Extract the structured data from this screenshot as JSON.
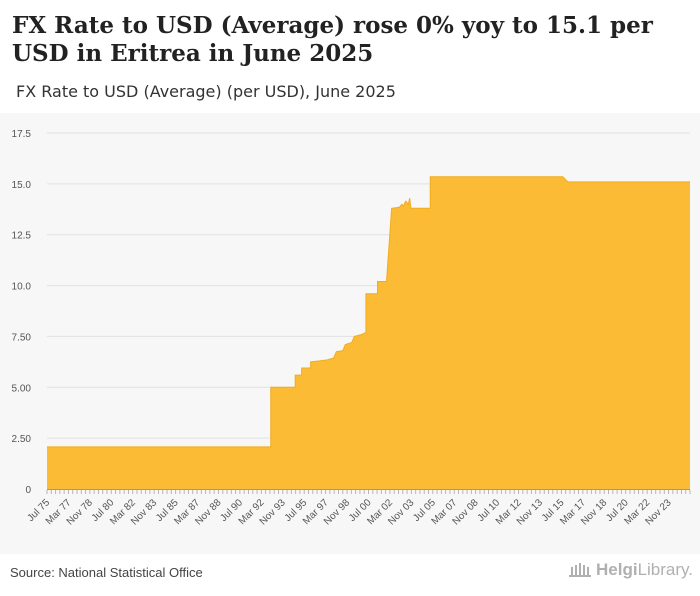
{
  "header": {
    "title": "FX Rate to USD (Average) rose 0% yoy to 15.1 per USD in Eritrea in June 2025",
    "subtitle": "FX Rate to USD (Average) (per USD), June 2025"
  },
  "footer": {
    "source": "Source: National Statistical Office",
    "logo_part1": "Helgi",
    "logo_part2": "Library."
  },
  "chart_data": {
    "type": "area",
    "title": "FX Rate to USD (Average) rose 0% yoy to 15.1 per USD in Eritrea in June 2025",
    "subtitle": "FX Rate to USD (Average) (per USD), June 2025",
    "xlabel": "",
    "ylabel": "",
    "ylim": [
      0,
      17.5
    ],
    "x_range": [
      1975.5,
      2025.5
    ],
    "grid": true,
    "series_color": "#fbbb35",
    "y_ticks": [
      {
        "value": 0,
        "label": "0"
      },
      {
        "value": 2.5,
        "label": "2.50"
      },
      {
        "value": 5,
        "label": "5.00"
      },
      {
        "value": 7.5,
        "label": "7.50"
      },
      {
        "value": 10,
        "label": "10.0"
      },
      {
        "value": 12.5,
        "label": "12.5"
      },
      {
        "value": 15,
        "label": "15.0"
      },
      {
        "value": 17.5,
        "label": "17.5"
      }
    ],
    "x_ticks": [
      {
        "t": 1975.5,
        "label": "Jul 75"
      },
      {
        "t": 1977.17,
        "label": "Mar 77"
      },
      {
        "t": 1978.83,
        "label": "Nov 78"
      },
      {
        "t": 1980.5,
        "label": "Jul 80"
      },
      {
        "t": 1982.17,
        "label": "Mar 82"
      },
      {
        "t": 1983.83,
        "label": "Nov 83"
      },
      {
        "t": 1985.5,
        "label": "Jul 85"
      },
      {
        "t": 1987.17,
        "label": "Mar 87"
      },
      {
        "t": 1988.83,
        "label": "Nov 88"
      },
      {
        "t": 1990.5,
        "label": "Jul 90"
      },
      {
        "t": 1992.17,
        "label": "Mar 92"
      },
      {
        "t": 1993.83,
        "label": "Nov 93"
      },
      {
        "t": 1995.5,
        "label": "Jul 95"
      },
      {
        "t": 1997.17,
        "label": "Mar 97"
      },
      {
        "t": 1998.83,
        "label": "Nov 98"
      },
      {
        "t": 2000.5,
        "label": "Jul 00"
      },
      {
        "t": 2002.17,
        "label": "Mar 02"
      },
      {
        "t": 2003.83,
        "label": "Nov 03"
      },
      {
        "t": 2005.5,
        "label": "Jul 05"
      },
      {
        "t": 2007.17,
        "label": "Mar 07"
      },
      {
        "t": 2008.83,
        "label": "Nov 08"
      },
      {
        "t": 2010.5,
        "label": "Jul 10"
      },
      {
        "t": 2012.17,
        "label": "Mar 12"
      },
      {
        "t": 2013.83,
        "label": "Nov 13"
      },
      {
        "t": 2015.5,
        "label": "Jul 15"
      },
      {
        "t": 2017.17,
        "label": "Mar 17"
      },
      {
        "t": 2018.83,
        "label": "Nov 18"
      },
      {
        "t": 2020.5,
        "label": "Jul 20"
      },
      {
        "t": 2022.17,
        "label": "Mar 22"
      },
      {
        "t": 2023.83,
        "label": "Nov 23"
      }
    ],
    "points": [
      {
        "t": 1975.5,
        "v": 2.07
      },
      {
        "t": 1992.9,
        "v": 2.07
      },
      {
        "t": 1992.9,
        "v": 5.0
      },
      {
        "t": 1994.8,
        "v": 5.0
      },
      {
        "t": 1994.8,
        "v": 5.6
      },
      {
        "t": 1995.3,
        "v": 5.6
      },
      {
        "t": 1995.3,
        "v": 5.95
      },
      {
        "t": 1996.0,
        "v": 5.95
      },
      {
        "t": 1996.0,
        "v": 6.25
      },
      {
        "t": 1996.7,
        "v": 6.3
      },
      {
        "t": 1997.3,
        "v": 6.35
      },
      {
        "t": 1997.8,
        "v": 6.45
      },
      {
        "t": 1998.0,
        "v": 6.75
      },
      {
        "t": 1998.5,
        "v": 6.8
      },
      {
        "t": 1998.7,
        "v": 7.1
      },
      {
        "t": 1999.2,
        "v": 7.2
      },
      {
        "t": 1999.4,
        "v": 7.5
      },
      {
        "t": 2000.0,
        "v": 7.6
      },
      {
        "t": 2000.3,
        "v": 7.7
      },
      {
        "t": 2000.3,
        "v": 9.6
      },
      {
        "t": 2001.2,
        "v": 9.6
      },
      {
        "t": 2001.2,
        "v": 10.2
      },
      {
        "t": 2001.9,
        "v": 10.2
      },
      {
        "t": 2002.3,
        "v": 13.8
      },
      {
        "t": 2002.9,
        "v": 13.85
      },
      {
        "t": 2003.1,
        "v": 14.0
      },
      {
        "t": 2003.2,
        "v": 13.9
      },
      {
        "t": 2003.4,
        "v": 14.15
      },
      {
        "t": 2003.6,
        "v": 14.0
      },
      {
        "t": 2003.7,
        "v": 14.3
      },
      {
        "t": 2003.8,
        "v": 13.8
      },
      {
        "t": 2005.3,
        "v": 13.8
      },
      {
        "t": 2005.3,
        "v": 15.35
      },
      {
        "t": 2015.6,
        "v": 15.35
      },
      {
        "t": 2016.0,
        "v": 15.1
      },
      {
        "t": 2025.5,
        "v": 15.1
      }
    ]
  }
}
